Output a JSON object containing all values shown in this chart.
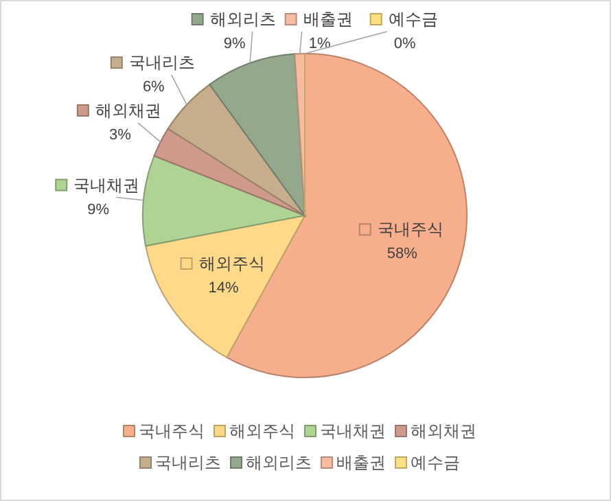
{
  "chart_data": {
    "type": "pie",
    "categories": [
      "국내주식",
      "해외주식",
      "국내채권",
      "해외채권",
      "국내리츠",
      "해외리츠",
      "배출권",
      "예수금"
    ],
    "values": [
      58,
      14,
      9,
      3,
      6,
      9,
      1,
      0
    ],
    "value_labels": [
      "58%",
      "14%",
      "9%",
      "3%",
      "6%",
      "9%",
      "1%",
      "0%"
    ],
    "colors": [
      "#f6ae8c",
      "#ffd98a",
      "#aed393",
      "#cf9a8c",
      "#c6ae8c",
      "#94a88e",
      "#f7bca0",
      "#ffe080"
    ],
    "legend": "bottom"
  }
}
